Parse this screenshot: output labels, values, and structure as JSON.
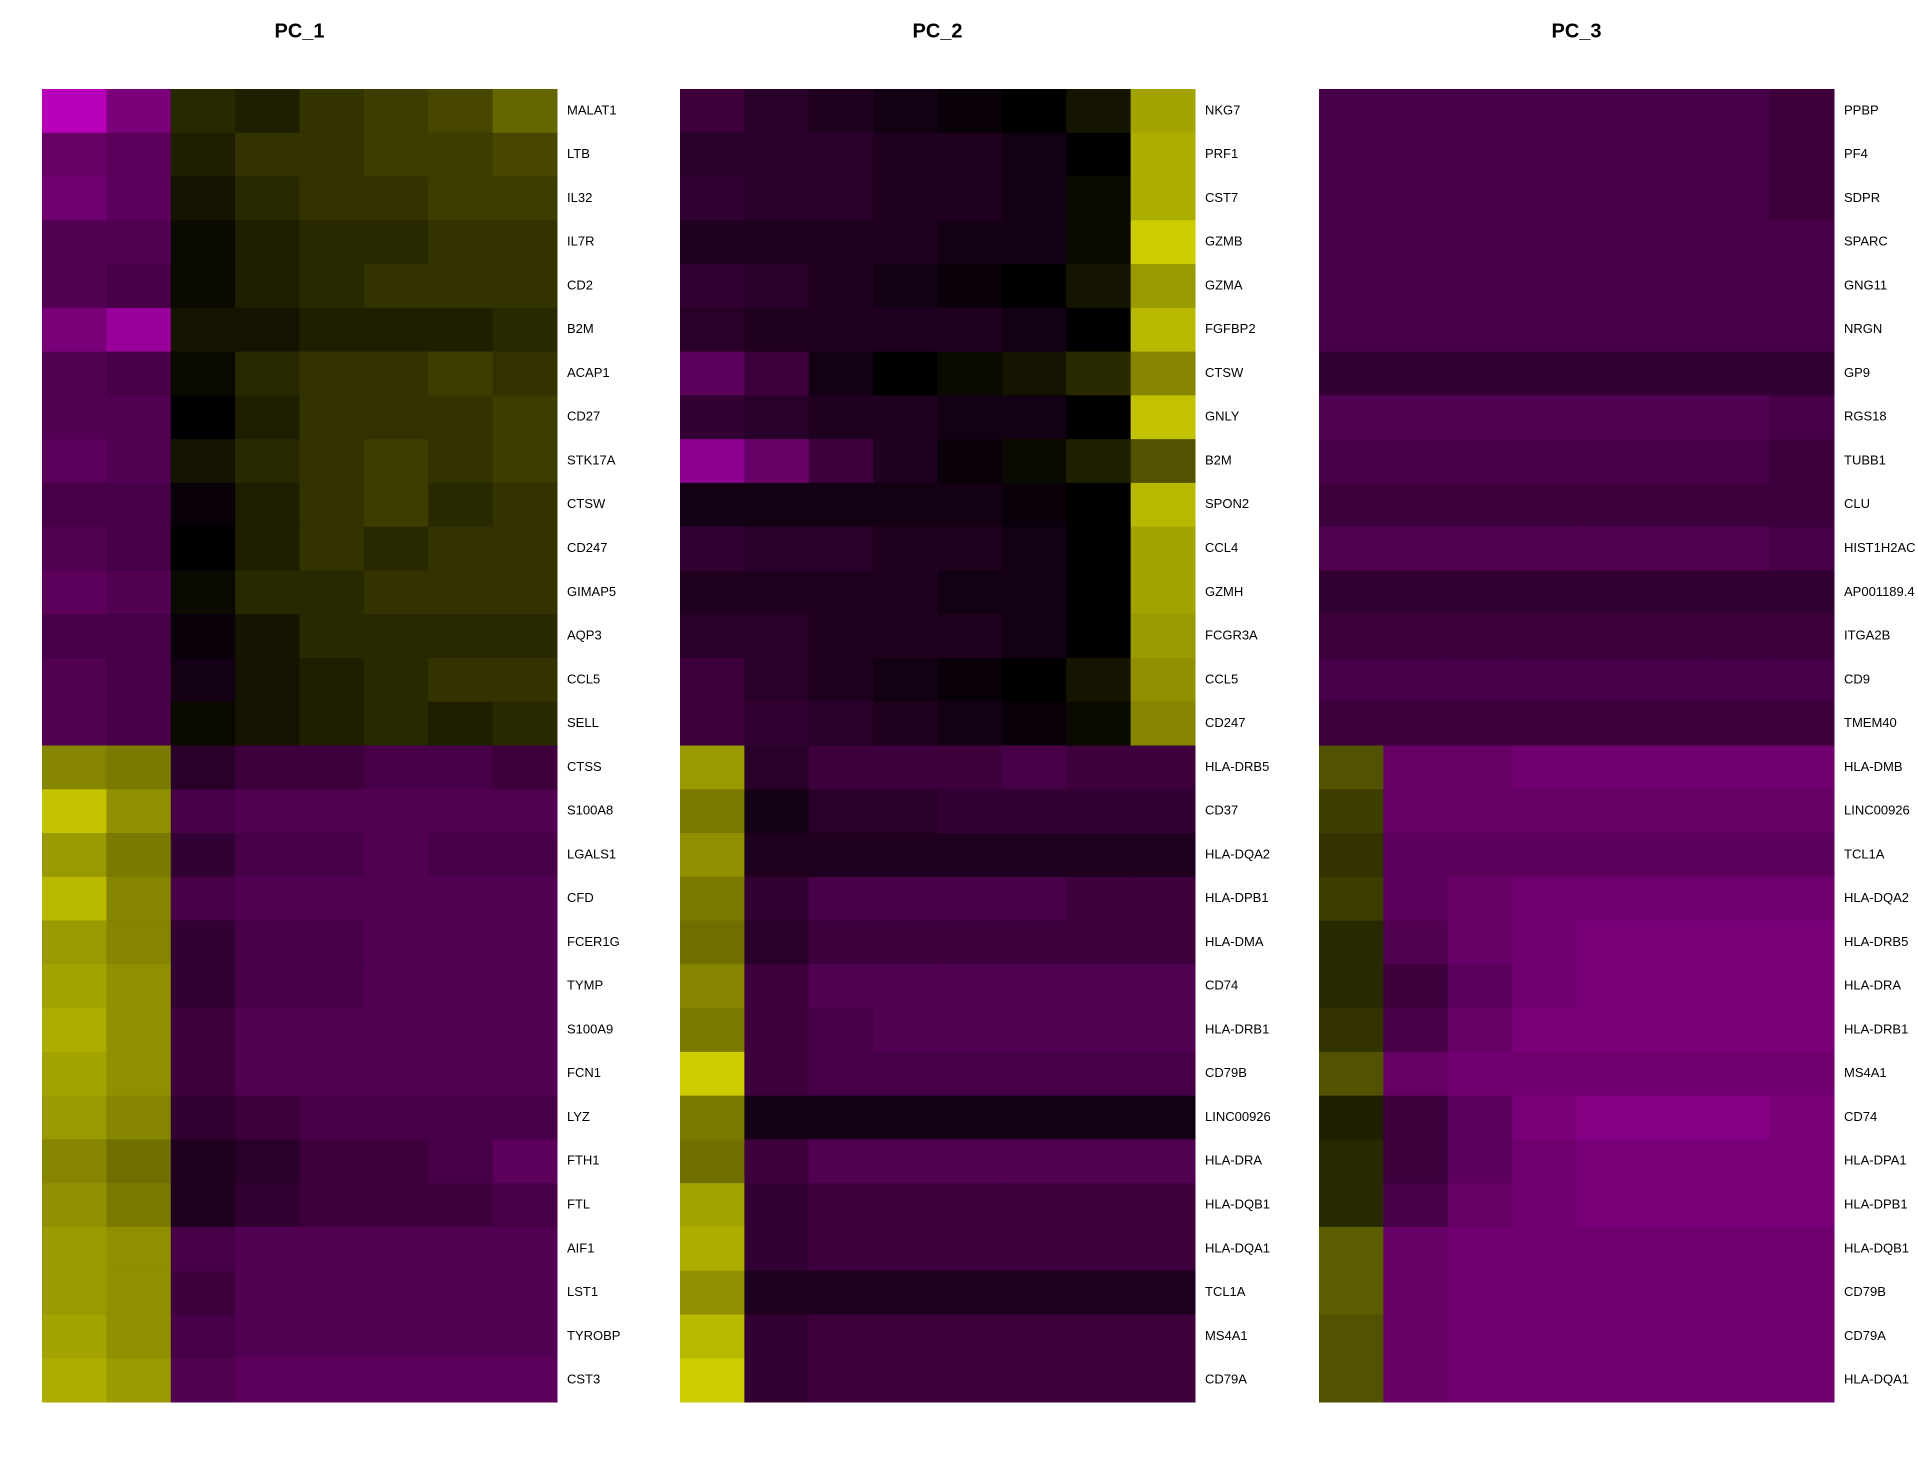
{
  "chart_data": {
    "type": "heatmap",
    "colorscale": [
      "#FF00FF",
      "#000000",
      "#FFFF00"
    ],
    "zlim": [
      -2.5,
      2.5
    ],
    "panels": [
      {
        "title": "PC_1",
        "rows": [
          "MALAT1",
          "LTB",
          "IL32",
          "IL7R",
          "CD2",
          "B2M",
          "ACAP1",
          "CD27",
          "STK17A",
          "CTSW",
          "CD247",
          "GIMAP5",
          "AQP3",
          "CCL5",
          "SELL",
          "CTSS",
          "S100A8",
          "LGALS1",
          "CFD",
          "FCER1G",
          "TYMP",
          "S100A9",
          "FCN1",
          "LYZ",
          "FTH1",
          "FTL",
          "AIF1",
          "LST1",
          "TYROBP",
          "CST3"
        ],
        "values": [
          [
            -1.8,
            -1.2,
            0.4,
            0.3,
            0.5,
            0.6,
            0.7,
            1.0
          ],
          [
            -1.0,
            -0.9,
            0.3,
            0.5,
            0.5,
            0.6,
            0.6,
            0.7
          ],
          [
            -1.1,
            -0.9,
            0.2,
            0.4,
            0.5,
            0.5,
            0.6,
            0.6
          ],
          [
            -0.8,
            -0.8,
            0.1,
            0.3,
            0.4,
            0.4,
            0.5,
            0.5
          ],
          [
            -0.8,
            -0.7,
            0.1,
            0.3,
            0.4,
            0.5,
            0.5,
            0.5
          ],
          [
            -1.2,
            -1.5,
            0.2,
            0.2,
            0.3,
            0.3,
            0.3,
            0.4
          ],
          [
            -0.8,
            -0.7,
            0.1,
            0.4,
            0.5,
            0.5,
            0.6,
            0.5
          ],
          [
            -0.8,
            -0.8,
            0.0,
            0.3,
            0.5,
            0.5,
            0.5,
            0.6
          ],
          [
            -0.9,
            -0.8,
            0.2,
            0.4,
            0.5,
            0.6,
            0.5,
            0.6
          ],
          [
            -0.7,
            -0.7,
            -0.1,
            0.3,
            0.5,
            0.6,
            0.4,
            0.5
          ],
          [
            -0.8,
            -0.7,
            0.0,
            0.3,
            0.5,
            0.4,
            0.5,
            0.5
          ],
          [
            -0.9,
            -0.8,
            0.1,
            0.4,
            0.4,
            0.5,
            0.5,
            0.5
          ],
          [
            -0.7,
            -0.7,
            -0.1,
            0.2,
            0.4,
            0.4,
            0.4,
            0.4
          ],
          [
            -0.8,
            -0.7,
            -0.2,
            0.2,
            0.3,
            0.4,
            0.5,
            0.5
          ],
          [
            -0.8,
            -0.7,
            0.1,
            0.2,
            0.3,
            0.4,
            0.3,
            0.4
          ],
          [
            1.3,
            1.2,
            -0.4,
            -0.6,
            -0.6,
            -0.7,
            -0.7,
            -0.6
          ],
          [
            1.9,
            1.4,
            -0.7,
            -0.8,
            -0.8,
            -0.8,
            -0.8,
            -0.8
          ],
          [
            1.5,
            1.2,
            -0.5,
            -0.7,
            -0.7,
            -0.8,
            -0.7,
            -0.7
          ],
          [
            1.8,
            1.3,
            -0.7,
            -0.8,
            -0.8,
            -0.8,
            -0.8,
            -0.8
          ],
          [
            1.5,
            1.3,
            -0.5,
            -0.7,
            -0.7,
            -0.8,
            -0.8,
            -0.8
          ],
          [
            1.6,
            1.4,
            -0.5,
            -0.7,
            -0.7,
            -0.8,
            -0.8,
            -0.8
          ],
          [
            1.7,
            1.4,
            -0.6,
            -0.8,
            -0.8,
            -0.8,
            -0.8,
            -0.8
          ],
          [
            1.6,
            1.4,
            -0.6,
            -0.8,
            -0.8,
            -0.8,
            -0.8,
            -0.8
          ],
          [
            1.5,
            1.3,
            -0.5,
            -0.6,
            -0.7,
            -0.7,
            -0.7,
            -0.7
          ],
          [
            1.3,
            1.1,
            -0.3,
            -0.4,
            -0.6,
            -0.6,
            -0.7,
            -0.9
          ],
          [
            1.4,
            1.2,
            -0.3,
            -0.5,
            -0.6,
            -0.6,
            -0.6,
            -0.7
          ],
          [
            1.5,
            1.4,
            -0.7,
            -0.8,
            -0.8,
            -0.8,
            -0.8,
            -0.8
          ],
          [
            1.5,
            1.4,
            -0.6,
            -0.8,
            -0.8,
            -0.8,
            -0.8,
            -0.8
          ],
          [
            1.6,
            1.4,
            -0.7,
            -0.8,
            -0.8,
            -0.8,
            -0.8,
            -0.8
          ],
          [
            1.7,
            1.5,
            -0.8,
            -0.9,
            -0.9,
            -0.9,
            -0.9,
            -0.9
          ]
        ]
      },
      {
        "title": "PC_2",
        "rows": [
          "NKG7",
          "PRF1",
          "CST7",
          "GZMB",
          "GZMA",
          "FGFBP2",
          "CTSW",
          "GNLY",
          "B2M",
          "SPON2",
          "CCL4",
          "GZMH",
          "FCGR3A",
          "CCL5",
          "CD247",
          "HLA-DRB5",
          "CD37",
          "HLA-DQA2",
          "HLA-DPB1",
          "HLA-DMA",
          "CD74",
          "HLA-DRB1",
          "CD79B",
          "LINC00926",
          "HLA-DRA",
          "HLA-DQB1",
          "HLA-DQA1",
          "TCL1A",
          "MS4A1",
          "CD79A"
        ],
        "values": [
          [
            -0.6,
            -0.4,
            -0.3,
            -0.2,
            -0.1,
            0.0,
            0.2,
            1.6
          ],
          [
            -0.4,
            -0.4,
            -0.4,
            -0.3,
            -0.3,
            -0.2,
            0.0,
            1.7
          ],
          [
            -0.5,
            -0.4,
            -0.4,
            -0.3,
            -0.3,
            -0.2,
            0.1,
            1.7
          ],
          [
            -0.3,
            -0.3,
            -0.3,
            -0.3,
            -0.2,
            -0.2,
            0.1,
            2.0
          ],
          [
            -0.5,
            -0.4,
            -0.3,
            -0.2,
            -0.1,
            0.0,
            0.2,
            1.5
          ],
          [
            -0.4,
            -0.3,
            -0.3,
            -0.3,
            -0.3,
            -0.2,
            0.0,
            1.8
          ],
          [
            -0.9,
            -0.6,
            -0.2,
            0.0,
            0.1,
            0.2,
            0.4,
            1.3
          ],
          [
            -0.5,
            -0.4,
            -0.3,
            -0.3,
            -0.2,
            -0.2,
            0.0,
            1.9
          ],
          [
            -1.4,
            -1.0,
            -0.6,
            -0.3,
            -0.1,
            0.1,
            0.3,
            0.8
          ],
          [
            -0.2,
            -0.2,
            -0.2,
            -0.2,
            -0.2,
            -0.1,
            0.0,
            1.8
          ],
          [
            -0.5,
            -0.4,
            -0.4,
            -0.3,
            -0.3,
            -0.2,
            0.0,
            1.6
          ],
          [
            -0.3,
            -0.3,
            -0.3,
            -0.3,
            -0.2,
            -0.2,
            0.0,
            1.6
          ],
          [
            -0.4,
            -0.4,
            -0.3,
            -0.3,
            -0.3,
            -0.2,
            0.0,
            1.5
          ],
          [
            -0.6,
            -0.4,
            -0.3,
            -0.2,
            -0.1,
            0.0,
            0.2,
            1.4
          ],
          [
            -0.6,
            -0.5,
            -0.4,
            -0.3,
            -0.2,
            -0.1,
            0.1,
            1.3
          ],
          [
            1.5,
            -0.4,
            -0.6,
            -0.6,
            -0.6,
            -0.7,
            -0.6,
            -0.6
          ],
          [
            1.2,
            -0.2,
            -0.4,
            -0.4,
            -0.5,
            -0.5,
            -0.5,
            -0.5
          ],
          [
            1.4,
            -0.3,
            -0.3,
            -0.3,
            -0.3,
            -0.3,
            -0.3,
            -0.3
          ],
          [
            1.2,
            -0.5,
            -0.7,
            -0.7,
            -0.7,
            -0.7,
            -0.6,
            -0.6
          ],
          [
            1.1,
            -0.4,
            -0.6,
            -0.6,
            -0.6,
            -0.6,
            -0.6,
            -0.6
          ],
          [
            1.3,
            -0.6,
            -0.8,
            -0.8,
            -0.8,
            -0.8,
            -0.8,
            -0.8
          ],
          [
            1.2,
            -0.6,
            -0.7,
            -0.8,
            -0.8,
            -0.8,
            -0.8,
            -0.8
          ],
          [
            2.0,
            -0.6,
            -0.7,
            -0.7,
            -0.7,
            -0.7,
            -0.7,
            -0.7
          ],
          [
            1.2,
            -0.2,
            -0.2,
            -0.2,
            -0.2,
            -0.2,
            -0.2,
            -0.2
          ],
          [
            1.1,
            -0.6,
            -0.8,
            -0.8,
            -0.8,
            -0.8,
            -0.8,
            -0.8
          ],
          [
            1.6,
            -0.5,
            -0.6,
            -0.6,
            -0.6,
            -0.6,
            -0.6,
            -0.6
          ],
          [
            1.7,
            -0.5,
            -0.6,
            -0.6,
            -0.6,
            -0.6,
            -0.6,
            -0.6
          ],
          [
            1.4,
            -0.3,
            -0.3,
            -0.3,
            -0.3,
            -0.3,
            -0.3,
            -0.3
          ],
          [
            1.8,
            -0.5,
            -0.6,
            -0.6,
            -0.6,
            -0.6,
            -0.6,
            -0.6
          ],
          [
            2.0,
            -0.5,
            -0.6,
            -0.6,
            -0.6,
            -0.6,
            -0.6,
            -0.6
          ]
        ]
      },
      {
        "title": "PC_3",
        "rows": [
          "PPBP",
          "PF4",
          "SDPR",
          "SPARC",
          "GNG11",
          "NRGN",
          "GP9",
          "RGS18",
          "TUBB1",
          "CLU",
          "HIST1H2AC",
          "AP001189.4",
          "ITGA2B",
          "CD9",
          "TMEM40",
          "HLA-DMB",
          "LINC00926",
          "TCL1A",
          "HLA-DQA2",
          "HLA-DRB5",
          "HLA-DRA",
          "HLA-DRB1",
          "MS4A1",
          "CD74",
          "HLA-DPA1",
          "HLA-DPB1",
          "HLA-DQB1",
          "CD79B",
          "CD79A",
          "HLA-DQA1"
        ],
        "values": [
          [
            -0.7,
            -0.7,
            -0.7,
            -0.7,
            -0.7,
            -0.7,
            -0.7,
            -0.6
          ],
          [
            -0.7,
            -0.7,
            -0.7,
            -0.7,
            -0.7,
            -0.7,
            -0.7,
            -0.6
          ],
          [
            -0.7,
            -0.7,
            -0.7,
            -0.7,
            -0.7,
            -0.7,
            -0.7,
            -0.6
          ],
          [
            -0.7,
            -0.7,
            -0.7,
            -0.7,
            -0.7,
            -0.7,
            -0.7,
            -0.7
          ],
          [
            -0.7,
            -0.7,
            -0.7,
            -0.7,
            -0.7,
            -0.7,
            -0.7,
            -0.7
          ],
          [
            -0.7,
            -0.7,
            -0.7,
            -0.7,
            -0.7,
            -0.7,
            -0.7,
            -0.7
          ],
          [
            -0.5,
            -0.5,
            -0.5,
            -0.5,
            -0.5,
            -0.5,
            -0.5,
            -0.5
          ],
          [
            -0.8,
            -0.8,
            -0.8,
            -0.8,
            -0.8,
            -0.8,
            -0.8,
            -0.7
          ],
          [
            -0.7,
            -0.7,
            -0.7,
            -0.7,
            -0.7,
            -0.7,
            -0.7,
            -0.6
          ],
          [
            -0.6,
            -0.6,
            -0.6,
            -0.6,
            -0.6,
            -0.6,
            -0.6,
            -0.6
          ],
          [
            -0.8,
            -0.8,
            -0.8,
            -0.8,
            -0.8,
            -0.8,
            -0.8,
            -0.7
          ],
          [
            -0.5,
            -0.5,
            -0.5,
            -0.5,
            -0.5,
            -0.5,
            -0.5,
            -0.5
          ],
          [
            -0.6,
            -0.6,
            -0.6,
            -0.6,
            -0.6,
            -0.6,
            -0.6,
            -0.6
          ],
          [
            -0.7,
            -0.7,
            -0.7,
            -0.7,
            -0.7,
            -0.7,
            -0.7,
            -0.7
          ],
          [
            -0.6,
            -0.6,
            -0.6,
            -0.6,
            -0.6,
            -0.6,
            -0.6,
            -0.6
          ],
          [
            0.8,
            -1.0,
            -1.0,
            -1.1,
            -1.1,
            -1.1,
            -1.1,
            -1.1
          ],
          [
            0.6,
            -1.0,
            -1.0,
            -1.0,
            -1.0,
            -1.0,
            -1.0,
            -1.0
          ],
          [
            0.5,
            -0.9,
            -0.9,
            -0.9,
            -0.9,
            -0.9,
            -0.9,
            -0.9
          ],
          [
            0.6,
            -0.9,
            -1.0,
            -1.1,
            -1.1,
            -1.1,
            -1.1,
            -1.1
          ],
          [
            0.4,
            -0.8,
            -1.0,
            -1.1,
            -1.2,
            -1.2,
            -1.2,
            -1.2
          ],
          [
            0.4,
            -0.6,
            -0.9,
            -1.1,
            -1.2,
            -1.2,
            -1.2,
            -1.2
          ],
          [
            0.5,
            -0.7,
            -1.0,
            -1.2,
            -1.2,
            -1.2,
            -1.2,
            -1.2
          ],
          [
            0.8,
            -1.0,
            -1.1,
            -1.1,
            -1.1,
            -1.1,
            -1.1,
            -1.1
          ],
          [
            0.3,
            -0.6,
            -0.9,
            -1.2,
            -1.3,
            -1.3,
            -1.3,
            -1.2
          ],
          [
            0.4,
            -0.6,
            -0.9,
            -1.1,
            -1.2,
            -1.2,
            -1.2,
            -1.2
          ],
          [
            0.4,
            -0.7,
            -1.0,
            -1.1,
            -1.2,
            -1.2,
            -1.2,
            -1.2
          ],
          [
            0.9,
            -1.0,
            -1.1,
            -1.1,
            -1.1,
            -1.1,
            -1.1,
            -1.1
          ],
          [
            0.9,
            -1.0,
            -1.1,
            -1.1,
            -1.1,
            -1.1,
            -1.1,
            -1.1
          ],
          [
            0.8,
            -1.0,
            -1.1,
            -1.1,
            -1.1,
            -1.1,
            -1.1,
            -1.1
          ],
          [
            0.8,
            -1.0,
            -1.1,
            -1.1,
            -1.1,
            -1.1,
            -1.1,
            -1.1
          ]
        ]
      }
    ]
  }
}
